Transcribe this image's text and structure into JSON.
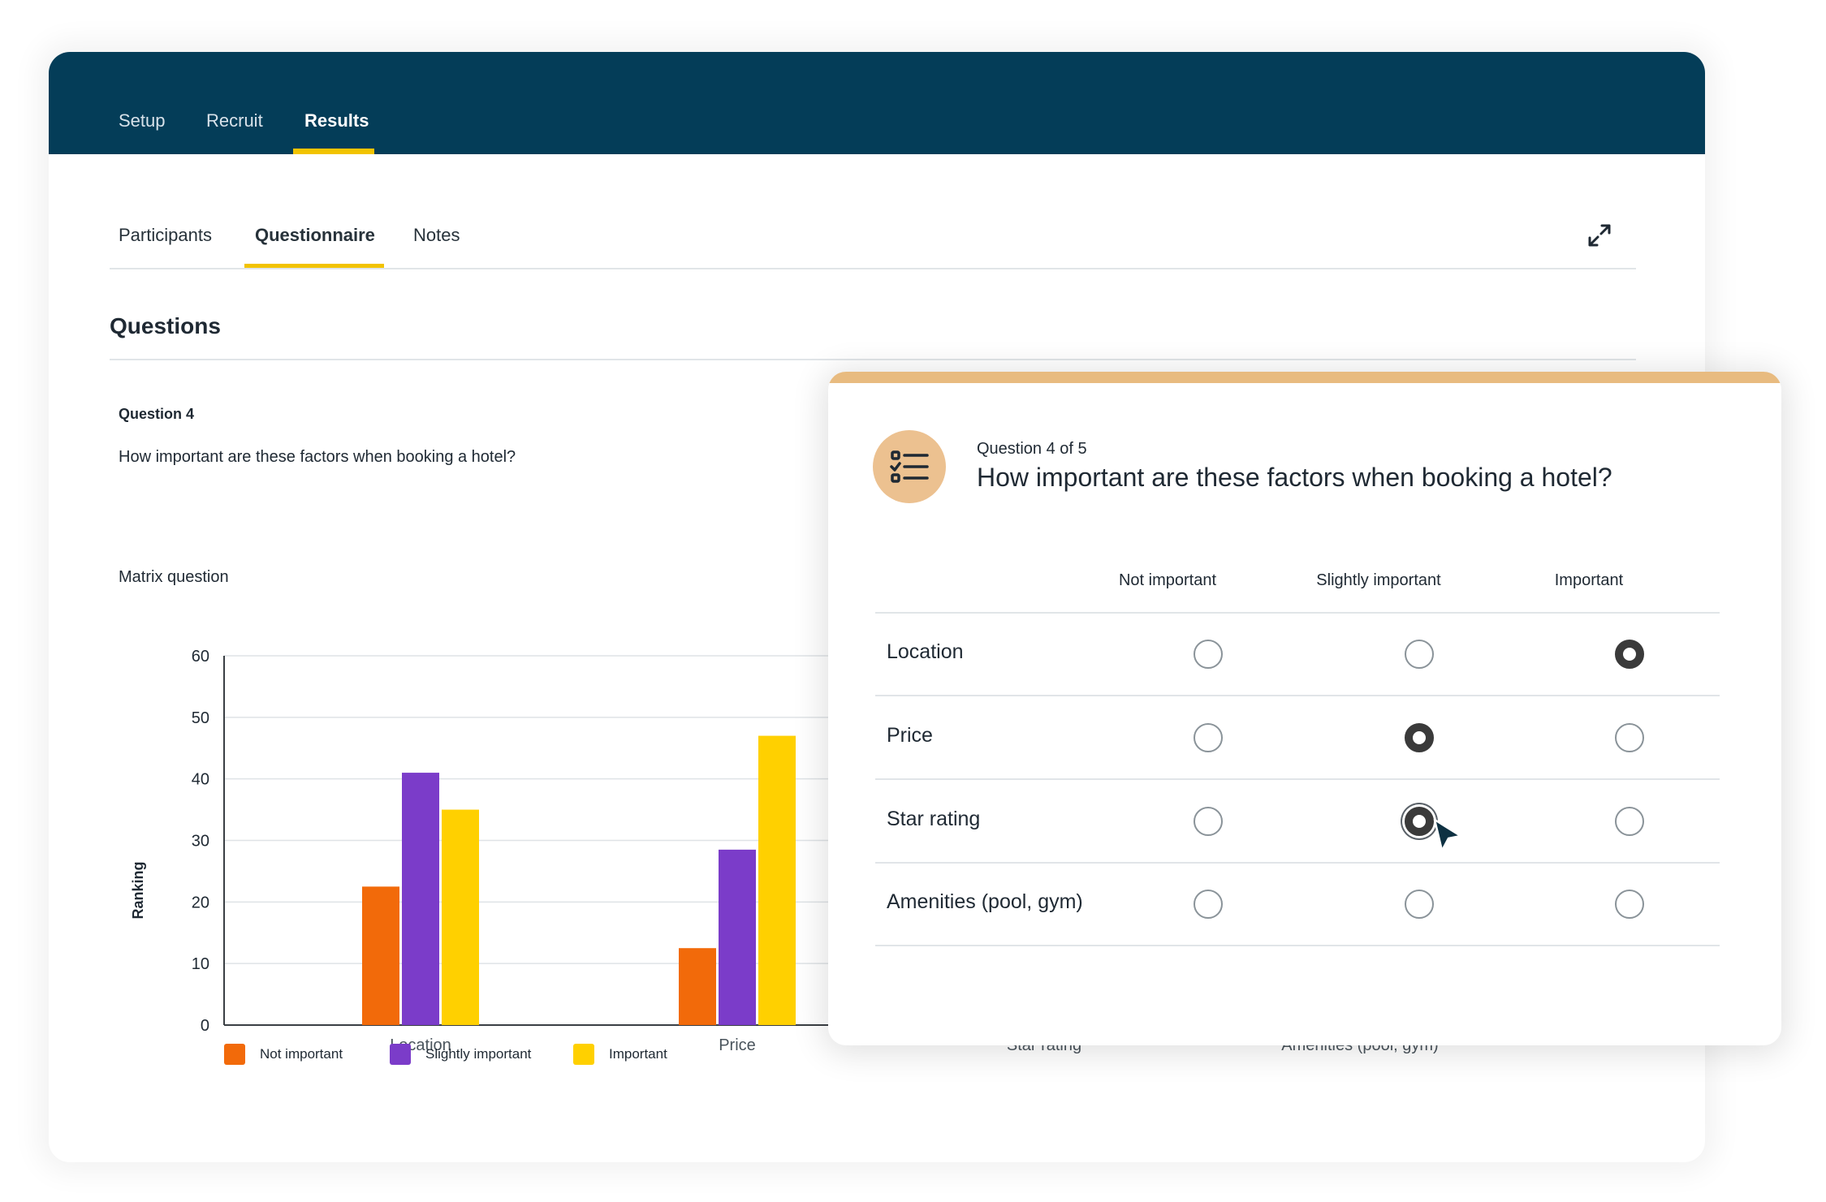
{
  "topnav": {
    "items": [
      "Setup",
      "Recruit",
      "Results"
    ],
    "active": "Results"
  },
  "subtabs": {
    "items": [
      "Participants",
      "Questionnaire",
      "Notes"
    ],
    "active": "Questionnaire"
  },
  "section": {
    "title": "Questions",
    "question_number": "Question 4",
    "question_text": "How important are these factors when booking a hotel?",
    "question_type": "Matrix question"
  },
  "chart_data": {
    "type": "bar",
    "ylabel": "Ranking",
    "xlabel": "",
    "ylim": [
      0,
      60
    ],
    "yticks": [
      0,
      10,
      20,
      30,
      40,
      50,
      60
    ],
    "categories": [
      "Location",
      "Price",
      "Star rating",
      "Amenities (pool, gym)"
    ],
    "series": [
      {
        "name": "Not important",
        "color": "#f26a0a",
        "values": [
          22.5,
          12.5,
          null,
          null
        ]
      },
      {
        "name": "Slightly important",
        "color": "#7b3cc9",
        "values": [
          41,
          28.5,
          null,
          null
        ]
      },
      {
        "name": "Important",
        "color": "#ffd000",
        "values": [
          35,
          47,
          null,
          null
        ]
      }
    ],
    "legend": "bottom-left",
    "grid": true
  },
  "card": {
    "question_of": "Question 4 of 5",
    "title": "How important are these factors when booking a hotel?",
    "icon": "checklist-icon",
    "columns": [
      "Not important",
      "Slightly important",
      "Important"
    ],
    "rows": [
      {
        "label": "Location",
        "selected": 2
      },
      {
        "label": "Price",
        "selected": 1
      },
      {
        "label": "Star rating",
        "selected": 1
      },
      {
        "label": "Amenities (pool, gym)",
        "selected": null
      }
    ]
  },
  "colors": {
    "header": "#043d58",
    "accent": "#f2c300",
    "card_accent": "#e8bb80"
  }
}
